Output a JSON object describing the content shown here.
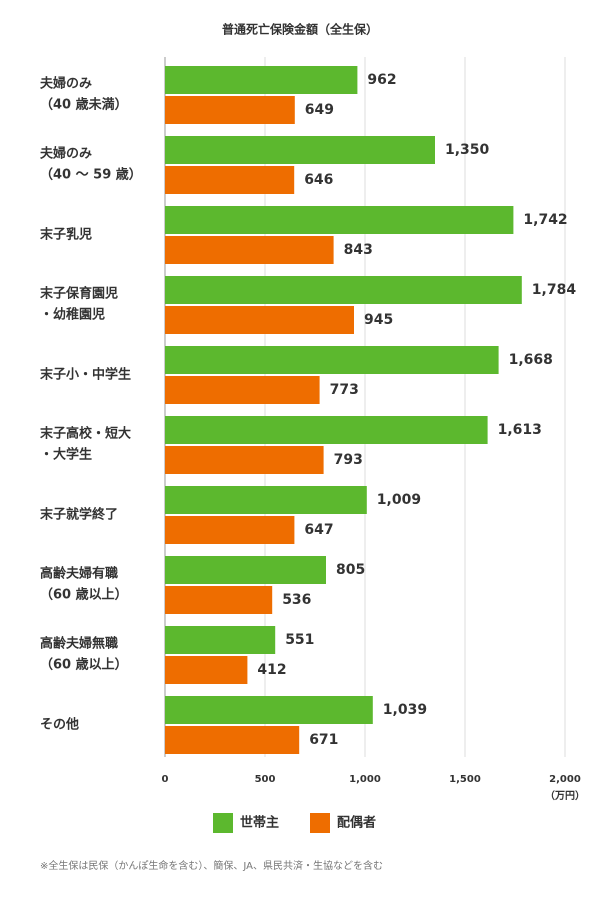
{
  "chart_data": {
    "type": "bar",
    "orientation": "horizontal",
    "title": "普通死亡保険金額（全生保）",
    "x_label": "（万円）",
    "footnote": "※全生保は民保（かんぽ生命を含む）、簡保、JA、県民共済・生協などを含む",
    "categories": [
      [
        "夫婦のみ",
        "（40 歳未満）"
      ],
      [
        "夫婦のみ",
        "（40 〜 59 歳）"
      ],
      [
        "末子乳児"
      ],
      [
        "末子保育園児",
        "・幼稚園児"
      ],
      [
        "末子小・中学生"
      ],
      [
        "末子高校・短大",
        "・大学生"
      ],
      [
        "末子就学終了"
      ],
      [
        "高齢夫婦有職",
        "（60 歳以上）"
      ],
      [
        "高齢夫婦無職",
        "（60 歳以上）"
      ],
      [
        "その他"
      ]
    ],
    "series": [
      {
        "name": "世帯主",
        "color": "#5cb82e",
        "values": [
          962,
          1350,
          1742,
          1784,
          1668,
          1613,
          1009,
          805,
          551,
          1039
        ],
        "value_labels": [
          "962",
          "1,350",
          "1,742",
          "1,784",
          "1,668",
          "1,613",
          "1,009",
          "805",
          "551",
          "1,039"
        ]
      },
      {
        "name": "配偶者",
        "color": "#ee6d00",
        "values": [
          649,
          646,
          843,
          945,
          773,
          793,
          647,
          536,
          412,
          671
        ],
        "value_labels": [
          "649",
          "646",
          "843",
          "945",
          "773",
          "793",
          "647",
          "536",
          "412",
          "671"
        ]
      }
    ],
    "xlim": [
      0,
      2000
    ],
    "xticks": [
      0,
      500,
      {
        "value": 1000,
        "label": "1,000"
      },
      {
        "value": 1500,
        "label": "1,500"
      },
      {
        "value": 2000,
        "label": "2,000"
      }
    ],
    "grid": true,
    "legend": "bottom"
  }
}
